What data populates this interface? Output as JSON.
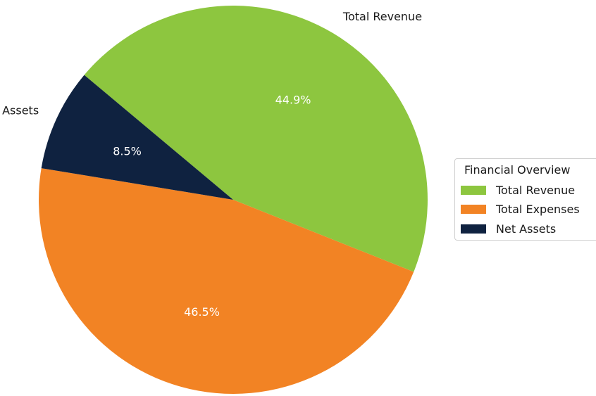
{
  "chart_data": {
    "type": "pie",
    "labels": [
      "Total Revenue",
      "Total Expenses",
      "Net Assets"
    ],
    "values": [
      44.9,
      46.5,
      8.5
    ],
    "percent_labels": [
      "44.9%",
      "46.5%",
      "8.5%"
    ],
    "colors": [
      "#8dc63f",
      "#f28324",
      "#0f2240"
    ],
    "legend": {
      "title": "Financial Overview",
      "placement": "right",
      "entries": [
        "Total Revenue",
        "Total Expenses",
        "Net Assets"
      ]
    }
  }
}
